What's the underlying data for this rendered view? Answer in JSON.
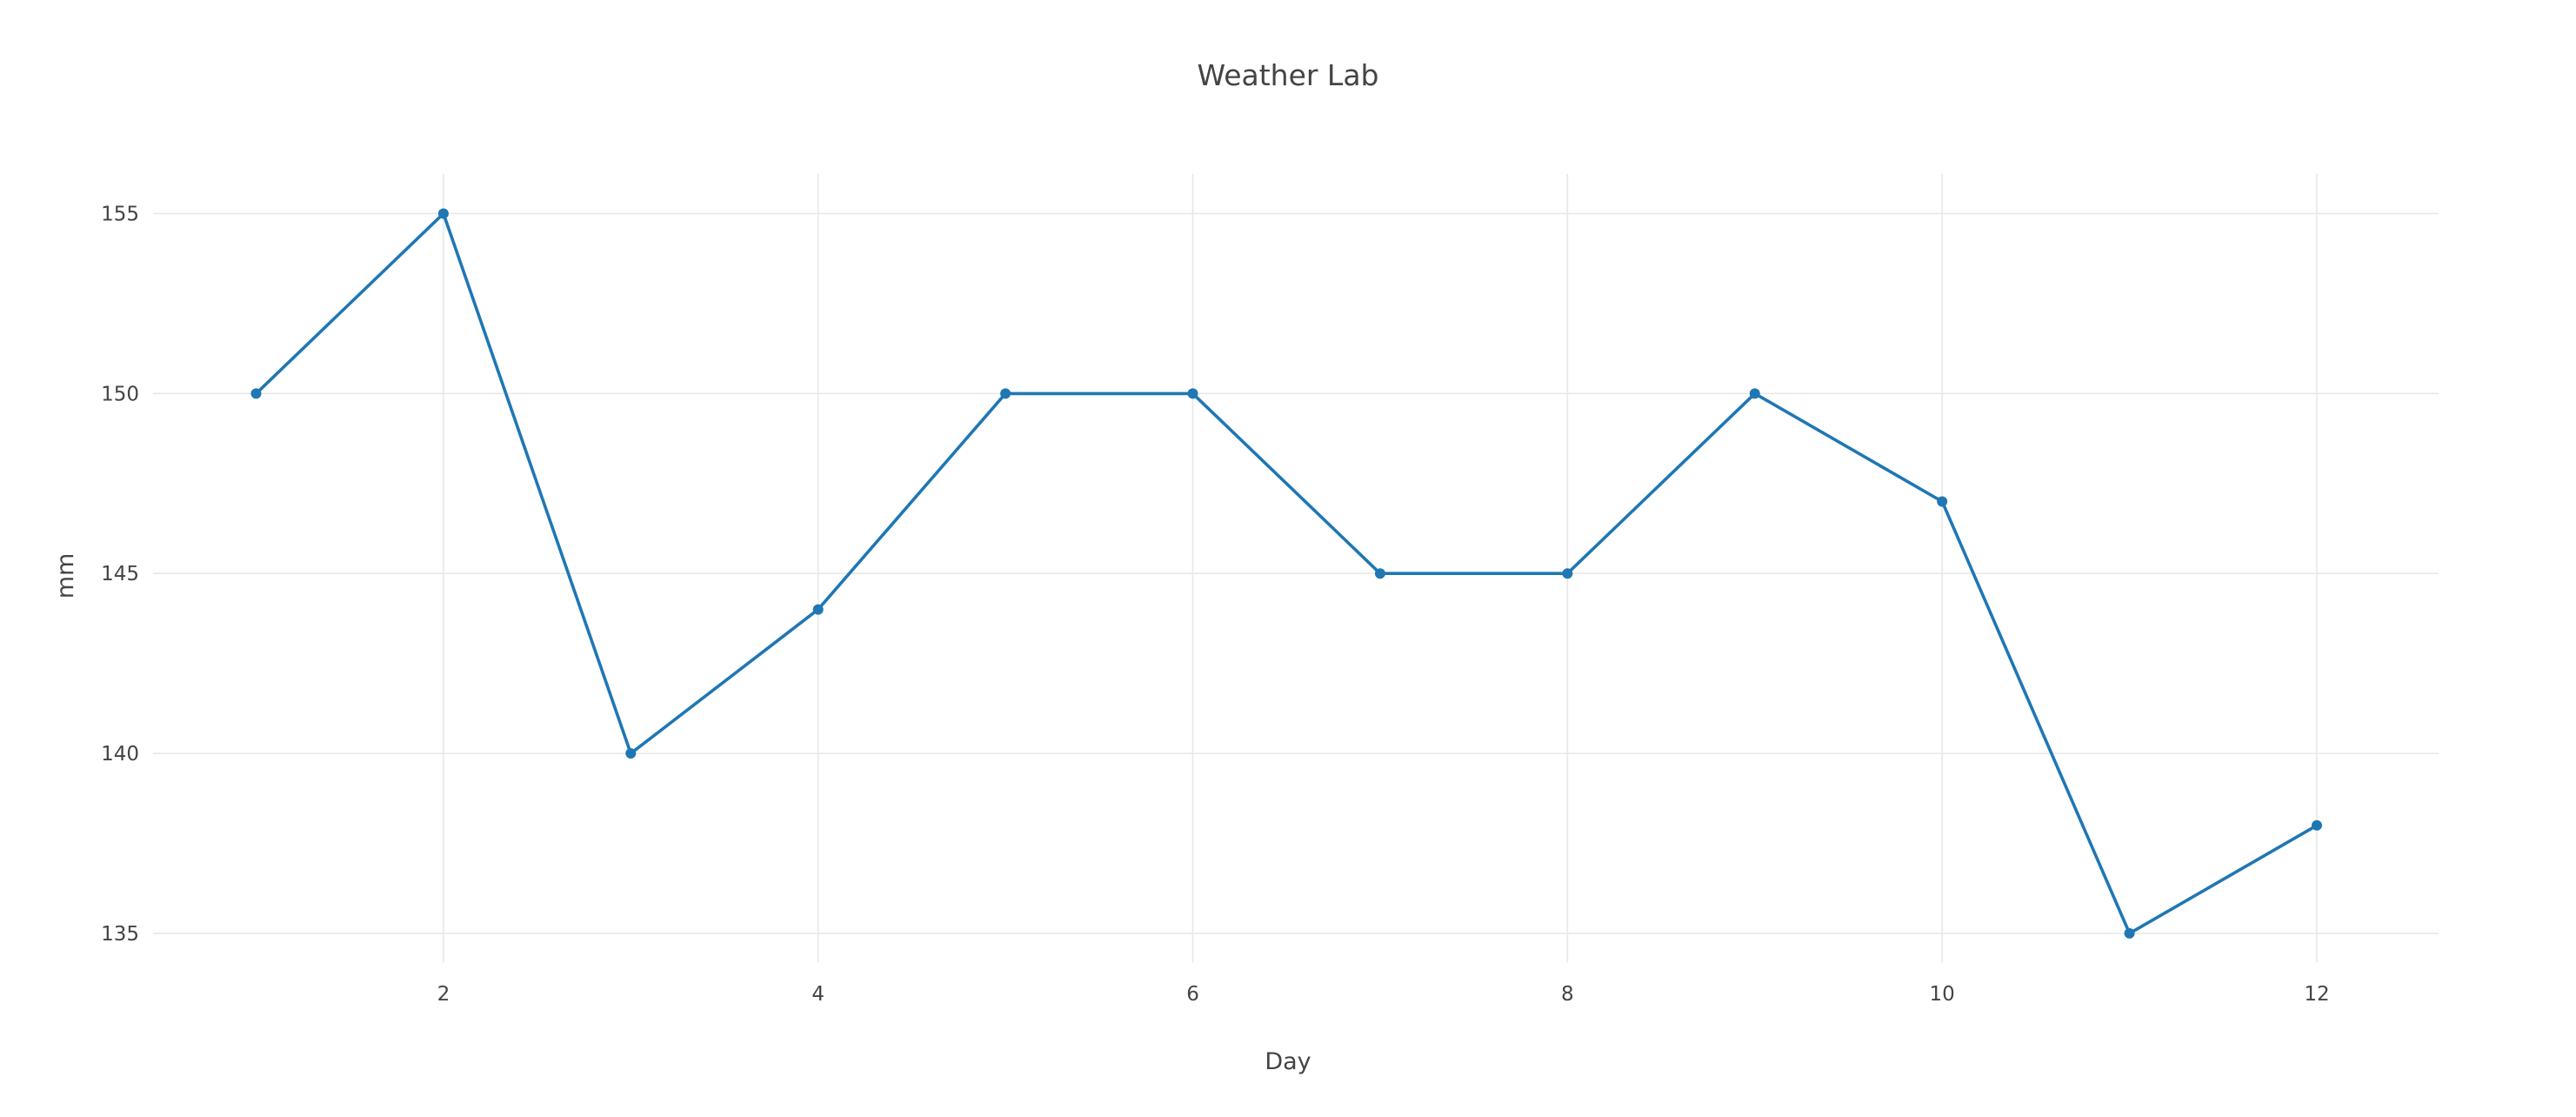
{
  "chart_data": {
    "type": "line",
    "title": "Weather Lab",
    "xlabel": "Day",
    "ylabel": "mm",
    "x": [
      1,
      2,
      3,
      4,
      5,
      6,
      7,
      8,
      9,
      10,
      11,
      12
    ],
    "series": [
      {
        "values": [
          150,
          155,
          140,
          144,
          150,
          150,
          145,
          145,
          150,
          147,
          135,
          138
        ],
        "color": "#1f77b4"
      }
    ],
    "xlim": [
      0.45,
      12.65
    ],
    "ylim": [
      134.2,
      156.1
    ],
    "xticks": [
      2,
      4,
      6,
      8,
      10,
      12
    ],
    "yticks": [
      135,
      140,
      145,
      150,
      155
    ],
    "grid": true,
    "legend": "none",
    "markers": true
  }
}
